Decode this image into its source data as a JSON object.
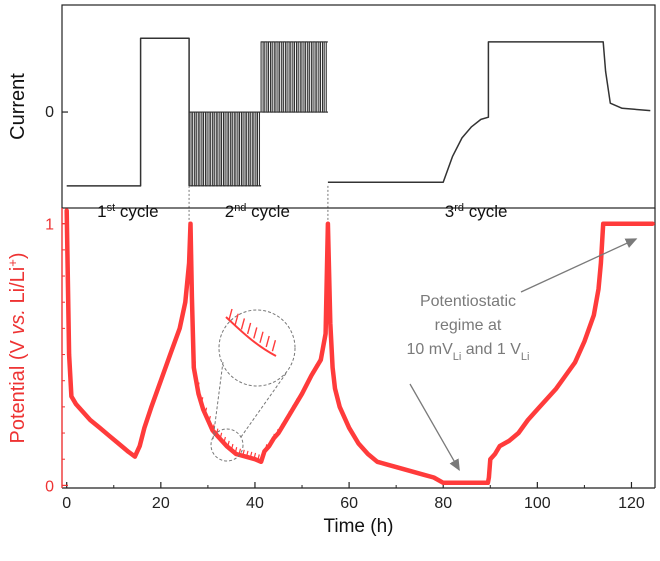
{
  "chart_data": {
    "type": "line",
    "x_axis": {
      "label": "Time (h)",
      "ticks": [
        "0",
        "20",
        "40",
        "60",
        "80",
        "100",
        "120"
      ],
      "tick_values": [
        0,
        20,
        40,
        60,
        80,
        100,
        120
      ],
      "range": [
        -1,
        125
      ]
    },
    "top_panel": {
      "ylabel": "Current",
      "yticks": [
        "0"
      ],
      "ytick_values": [
        0
      ],
      "ylim": [
        -1.3,
        1.45
      ],
      "series": [
        {
          "color": "#333333",
          "segments": [
            {
              "x": [
                0,
                15.7,
                15.7,
                26,
                26
              ],
              "y": [
                -1.0,
                -1.0,
                1.0,
                1.0,
                -1.0
              ]
            },
            {
              "kind": "pulse-train",
              "x_start": 26,
              "x_end": 41.3,
              "low": -1.0,
              "high": 0.0,
              "count": 20
            },
            {
              "kind": "pulse-train",
              "x_start": 41.3,
              "x_end": 55.5,
              "low": 0.0,
              "high": 0.95,
              "count": 18
            },
            {
              "x": [
                55.5,
                80,
                82,
                84,
                86,
                88,
                89.6,
                89.6,
                114,
                114.5,
                115.5,
                118,
                124
              ],
              "y": [
                -0.95,
                -0.95,
                -0.6,
                -0.35,
                -0.2,
                -0.1,
                -0.07,
                0.95,
                0.95,
                0.55,
                0.12,
                0.05,
                0.02
              ]
            }
          ]
        }
      ],
      "annotations": [
        {
          "base": "1",
          "sup": "st",
          "rest": " cycle",
          "x": 13
        },
        {
          "base": "2",
          "sup": "nd",
          "rest": " cycle",
          "x": 40.5
        },
        {
          "base": "3",
          "sup": "rd",
          "rest": " cycle",
          "x": 87
        }
      ]
    },
    "bottom_panel": {
      "ylabel": [
        "Potential (V ",
        "vs.",
        " Li/Li",
        "+",
        ")"
      ],
      "ylabel_color": "#ee3333",
      "yticks": [
        "0",
        "1"
      ],
      "ytick_values": [
        0,
        1
      ],
      "ylim": [
        -0.01,
        1.06
      ],
      "series": [
        {
          "color": "#ff3b3b",
          "x": [
            0,
            0.5,
            1,
            2,
            3,
            4,
            5,
            7,
            9,
            11,
            13,
            14.5,
            15.5,
            16.5,
            18,
            20,
            22,
            24,
            25.2,
            26,
            26.3,
            26.6,
            27,
            28,
            29,
            30,
            31,
            32,
            34,
            36,
            38,
            40,
            41.3,
            42,
            43,
            44,
            45,
            46,
            48,
            50,
            52,
            54,
            55,
            55.5,
            56,
            56.5,
            57,
            58,
            60,
            62,
            64,
            66,
            68,
            70,
            72,
            74,
            76,
            78,
            80,
            82,
            84,
            86,
            88,
            89.5,
            89.7,
            90,
            91,
            92,
            93,
            94,
            96,
            98,
            100,
            102,
            104,
            106,
            108,
            110,
            111,
            112,
            113,
            113.5,
            114,
            114.5,
            115,
            118,
            121,
            124.5
          ],
          "y": [
            1.05,
            0.5,
            0.34,
            0.31,
            0.29,
            0.27,
            0.25,
            0.22,
            0.19,
            0.16,
            0.13,
            0.11,
            0.15,
            0.22,
            0.3,
            0.4,
            0.5,
            0.6,
            0.7,
            0.85,
            1.0,
            0.72,
            0.45,
            0.35,
            0.29,
            0.25,
            0.21,
            0.19,
            0.15,
            0.12,
            0.11,
            0.1,
            0.09,
            0.13,
            0.15,
            0.18,
            0.2,
            0.23,
            0.29,
            0.35,
            0.42,
            0.48,
            0.58,
            1.0,
            0.62,
            0.45,
            0.37,
            0.3,
            0.22,
            0.16,
            0.12,
            0.09,
            0.08,
            0.07,
            0.06,
            0.05,
            0.04,
            0.03,
            0.01,
            0.01,
            0.01,
            0.01,
            0.01,
            0.01,
            0.03,
            0.1,
            0.12,
            0.15,
            0.16,
            0.17,
            0.2,
            0.25,
            0.29,
            0.33,
            0.37,
            0.42,
            0.47,
            0.55,
            0.6,
            0.65,
            0.75,
            0.85,
            1.0,
            1.0,
            1.0,
            1.0,
            1.0,
            1.0
          ]
        }
      ],
      "annotation": {
        "lines": [
          [
            "Potentiostatic"
          ],
          [
            "regime at"
          ],
          [
            "10 mV",
            "Li",
            " and 1 V",
            "Li"
          ]
        ],
        "arrows_to": [
          {
            "x": 80,
            "y": 0.04
          },
          {
            "x": 121,
            "y": 0.98
          }
        ],
        "color": "#7a7a7a"
      },
      "inset": {
        "note": "magnified view of the pulsed discharge curve with periodic spikes"
      }
    }
  }
}
